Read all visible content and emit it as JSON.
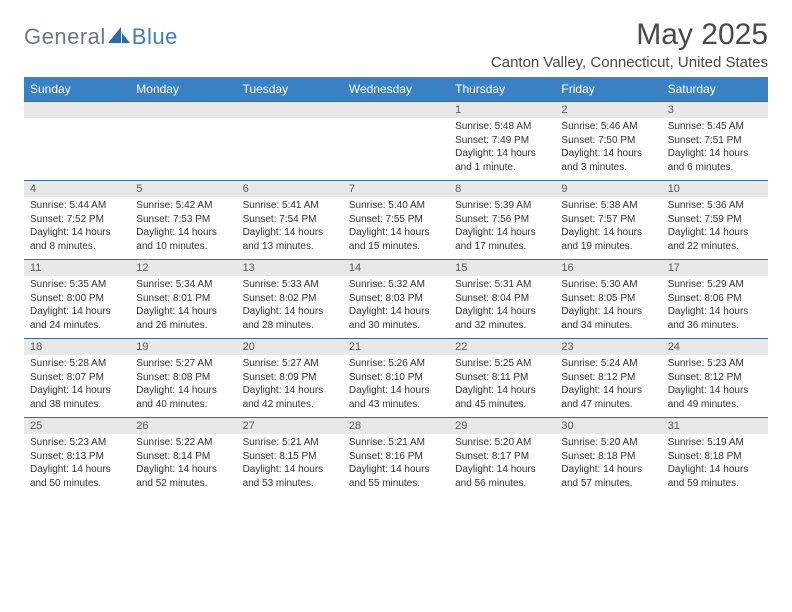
{
  "brand": {
    "word1": "General",
    "word2": "Blue"
  },
  "title": "May 2025",
  "location": "Canton Valley, Connecticut, United States",
  "colors": {
    "header_bg": "#3b82c4",
    "header_text": "#ffffff",
    "daynum_bg": "#e8e8e8",
    "row_border": "#3b6a94",
    "logo_gray": "#6b7a87",
    "logo_blue": "#3b7fc4",
    "text": "#333333"
  },
  "day_headers": [
    "Sunday",
    "Monday",
    "Tuesday",
    "Wednesday",
    "Thursday",
    "Friday",
    "Saturday"
  ],
  "weeks": [
    [
      {
        "n": "",
        "lines": []
      },
      {
        "n": "",
        "lines": []
      },
      {
        "n": "",
        "lines": []
      },
      {
        "n": "",
        "lines": []
      },
      {
        "n": "1",
        "lines": [
          "Sunrise: 5:48 AM",
          "Sunset: 7:49 PM",
          "Daylight: 14 hours and 1 minute."
        ]
      },
      {
        "n": "2",
        "lines": [
          "Sunrise: 5:46 AM",
          "Sunset: 7:50 PM",
          "Daylight: 14 hours and 3 minutes."
        ]
      },
      {
        "n": "3",
        "lines": [
          "Sunrise: 5:45 AM",
          "Sunset: 7:51 PM",
          "Daylight: 14 hours and 6 minutes."
        ]
      }
    ],
    [
      {
        "n": "4",
        "lines": [
          "Sunrise: 5:44 AM",
          "Sunset: 7:52 PM",
          "Daylight: 14 hours and 8 minutes."
        ]
      },
      {
        "n": "5",
        "lines": [
          "Sunrise: 5:42 AM",
          "Sunset: 7:53 PM",
          "Daylight: 14 hours and 10 minutes."
        ]
      },
      {
        "n": "6",
        "lines": [
          "Sunrise: 5:41 AM",
          "Sunset: 7:54 PM",
          "Daylight: 14 hours and 13 minutes."
        ]
      },
      {
        "n": "7",
        "lines": [
          "Sunrise: 5:40 AM",
          "Sunset: 7:55 PM",
          "Daylight: 14 hours and 15 minutes."
        ]
      },
      {
        "n": "8",
        "lines": [
          "Sunrise: 5:39 AM",
          "Sunset: 7:56 PM",
          "Daylight: 14 hours and 17 minutes."
        ]
      },
      {
        "n": "9",
        "lines": [
          "Sunrise: 5:38 AM",
          "Sunset: 7:57 PM",
          "Daylight: 14 hours and 19 minutes."
        ]
      },
      {
        "n": "10",
        "lines": [
          "Sunrise: 5:36 AM",
          "Sunset: 7:59 PM",
          "Daylight: 14 hours and 22 minutes."
        ]
      }
    ],
    [
      {
        "n": "11",
        "lines": [
          "Sunrise: 5:35 AM",
          "Sunset: 8:00 PM",
          "Daylight: 14 hours and 24 minutes."
        ]
      },
      {
        "n": "12",
        "lines": [
          "Sunrise: 5:34 AM",
          "Sunset: 8:01 PM",
          "Daylight: 14 hours and 26 minutes."
        ]
      },
      {
        "n": "13",
        "lines": [
          "Sunrise: 5:33 AM",
          "Sunset: 8:02 PM",
          "Daylight: 14 hours and 28 minutes."
        ]
      },
      {
        "n": "14",
        "lines": [
          "Sunrise: 5:32 AM",
          "Sunset: 8:03 PM",
          "Daylight: 14 hours and 30 minutes."
        ]
      },
      {
        "n": "15",
        "lines": [
          "Sunrise: 5:31 AM",
          "Sunset: 8:04 PM",
          "Daylight: 14 hours and 32 minutes."
        ]
      },
      {
        "n": "16",
        "lines": [
          "Sunrise: 5:30 AM",
          "Sunset: 8:05 PM",
          "Daylight: 14 hours and 34 minutes."
        ]
      },
      {
        "n": "17",
        "lines": [
          "Sunrise: 5:29 AM",
          "Sunset: 8:06 PM",
          "Daylight: 14 hours and 36 minutes."
        ]
      }
    ],
    [
      {
        "n": "18",
        "lines": [
          "Sunrise: 5:28 AM",
          "Sunset: 8:07 PM",
          "Daylight: 14 hours and 38 minutes."
        ]
      },
      {
        "n": "19",
        "lines": [
          "Sunrise: 5:27 AM",
          "Sunset: 8:08 PM",
          "Daylight: 14 hours and 40 minutes."
        ]
      },
      {
        "n": "20",
        "lines": [
          "Sunrise: 5:27 AM",
          "Sunset: 8:09 PM",
          "Daylight: 14 hours and 42 minutes."
        ]
      },
      {
        "n": "21",
        "lines": [
          "Sunrise: 5:26 AM",
          "Sunset: 8:10 PM",
          "Daylight: 14 hours and 43 minutes."
        ]
      },
      {
        "n": "22",
        "lines": [
          "Sunrise: 5:25 AM",
          "Sunset: 8:11 PM",
          "Daylight: 14 hours and 45 minutes."
        ]
      },
      {
        "n": "23",
        "lines": [
          "Sunrise: 5:24 AM",
          "Sunset: 8:12 PM",
          "Daylight: 14 hours and 47 minutes."
        ]
      },
      {
        "n": "24",
        "lines": [
          "Sunrise: 5:23 AM",
          "Sunset: 8:12 PM",
          "Daylight: 14 hours and 49 minutes."
        ]
      }
    ],
    [
      {
        "n": "25",
        "lines": [
          "Sunrise: 5:23 AM",
          "Sunset: 8:13 PM",
          "Daylight: 14 hours and 50 minutes."
        ]
      },
      {
        "n": "26",
        "lines": [
          "Sunrise: 5:22 AM",
          "Sunset: 8:14 PM",
          "Daylight: 14 hours and 52 minutes."
        ]
      },
      {
        "n": "27",
        "lines": [
          "Sunrise: 5:21 AM",
          "Sunset: 8:15 PM",
          "Daylight: 14 hours and 53 minutes."
        ]
      },
      {
        "n": "28",
        "lines": [
          "Sunrise: 5:21 AM",
          "Sunset: 8:16 PM",
          "Daylight: 14 hours and 55 minutes."
        ]
      },
      {
        "n": "29",
        "lines": [
          "Sunrise: 5:20 AM",
          "Sunset: 8:17 PM",
          "Daylight: 14 hours and 56 minutes."
        ]
      },
      {
        "n": "30",
        "lines": [
          "Sunrise: 5:20 AM",
          "Sunset: 8:18 PM",
          "Daylight: 14 hours and 57 minutes."
        ]
      },
      {
        "n": "31",
        "lines": [
          "Sunrise: 5:19 AM",
          "Sunset: 8:18 PM",
          "Daylight: 14 hours and 59 minutes."
        ]
      }
    ]
  ]
}
